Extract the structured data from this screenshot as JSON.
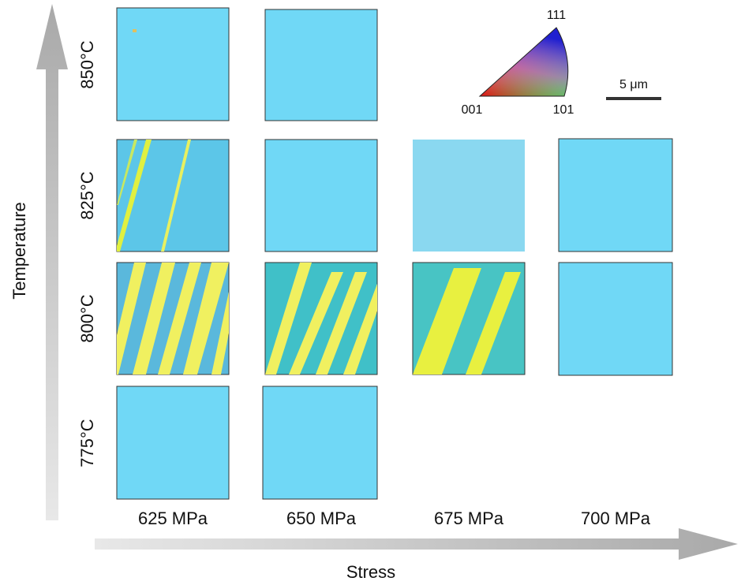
{
  "axes": {
    "y_label": "Temperature",
    "x_label": "Stress"
  },
  "rows": [
    "850°C",
    "825°C",
    "800°C",
    "775°C"
  ],
  "columns": [
    "625 MPa",
    "650 MPa",
    "675 MPa",
    "700 MPa"
  ],
  "legend": {
    "top": "111",
    "left": "001",
    "right": "101"
  },
  "scale_bar": "5 μm"
}
